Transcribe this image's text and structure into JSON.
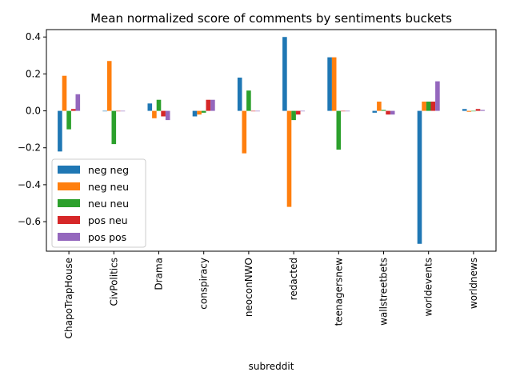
{
  "chart_data": {
    "type": "bar",
    "title": "Mean normalized score of comments by sentiments buckets",
    "xlabel": "subreddit",
    "ylabel": "",
    "categories": [
      "ChapoTrapHouse",
      "CivPolitics",
      "Drama",
      "conspiracy",
      "neoconNWO",
      "redacted",
      "teenagersnew",
      "wallstreetbets",
      "worldevents",
      "worldnews"
    ],
    "ylim": [
      -0.76,
      0.44
    ],
    "yticks": [
      -0.6,
      -0.4,
      -0.2,
      0.0,
      0.2,
      0.4
    ],
    "ytick_labels": [
      "−0.6",
      "−0.4",
      "−0.2",
      "0.0",
      "0.2",
      "0.4"
    ],
    "legend_position": "lower-left",
    "series": [
      {
        "name": " neg neg",
        "color": "#1f77b4",
        "values": [
          -0.22,
          0.0,
          0.04,
          -0.03,
          0.18,
          0.4,
          0.29,
          -0.01,
          -0.72,
          0.01
        ]
      },
      {
        "name": " neg neu",
        "color": "#ff7f0e",
        "values": [
          0.19,
          0.27,
          -0.04,
          -0.02,
          -0.23,
          -0.52,
          0.29,
          0.05,
          0.05,
          -0.005
        ]
      },
      {
        "name": " neu neu",
        "color": "#2ca02c",
        "values": [
          -0.1,
          -0.18,
          0.06,
          -0.01,
          0.11,
          -0.05,
          -0.21,
          0.005,
          0.05,
          0.0
        ]
      },
      {
        "name": " pos neu",
        "color": "#d62728",
        "values": [
          0.01,
          0.0,
          -0.03,
          0.06,
          0.0,
          -0.02,
          0.0,
          -0.02,
          0.05,
          0.01
        ]
      },
      {
        "name": " pos pos",
        "color": "#9467bd",
        "values": [
          0.09,
          0.0,
          -0.05,
          0.06,
          0.0,
          0.0,
          0.0,
          -0.02,
          0.16,
          0.005
        ]
      }
    ]
  }
}
